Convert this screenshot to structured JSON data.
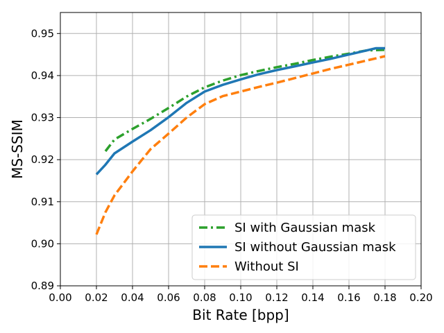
{
  "chart_data": {
    "type": "line",
    "xlabel": "Bit Rate [bpp]",
    "ylabel": "MS-SSIM",
    "xlim": [
      0.0,
      0.2
    ],
    "ylim": [
      0.89,
      0.955
    ],
    "x_ticks": [
      "0.00",
      "0.02",
      "0.04",
      "0.06",
      "0.08",
      "0.10",
      "0.12",
      "0.14",
      "0.16",
      "0.18",
      "0.20"
    ],
    "x_tick_values": [
      0.0,
      0.02,
      0.04,
      0.06,
      0.08,
      0.1,
      0.12,
      0.14,
      0.16,
      0.18,
      0.2
    ],
    "y_ticks": [
      "0.89",
      "0.90",
      "0.91",
      "0.92",
      "0.93",
      "0.94",
      "0.95"
    ],
    "y_tick_values": [
      0.89,
      0.9,
      0.91,
      0.92,
      0.93,
      0.94,
      0.95
    ],
    "grid": true,
    "legend_position": "bottom-right",
    "series": [
      {
        "name": "SI with Gaussian mask",
        "color": "#2ca02c",
        "style": "dashdot",
        "x": [
          0.025,
          0.03,
          0.04,
          0.05,
          0.06,
          0.07,
          0.08,
          0.09,
          0.1,
          0.11,
          0.12,
          0.13,
          0.14,
          0.15,
          0.16,
          0.17,
          0.18
        ],
        "y": [
          0.922,
          0.9248,
          0.9273,
          0.9297,
          0.9323,
          0.935,
          0.9372,
          0.9388,
          0.9401,
          0.9411,
          0.942,
          0.9428,
          0.9437,
          0.9445,
          0.9452,
          0.946,
          0.9461
        ]
      },
      {
        "name": "SI without Gaussian mask",
        "color": "#1f77b4",
        "style": "solid",
        "x": [
          0.02,
          0.025,
          0.03,
          0.04,
          0.05,
          0.06,
          0.07,
          0.08,
          0.09,
          0.1,
          0.11,
          0.12,
          0.13,
          0.14,
          0.15,
          0.16,
          0.17,
          0.175,
          0.18
        ],
        "y": [
          0.9165,
          0.9188,
          0.9215,
          0.9243,
          0.927,
          0.9301,
          0.9335,
          0.9362,
          0.9378,
          0.9391,
          0.9403,
          0.9413,
          0.9422,
          0.9431,
          0.944,
          0.945,
          0.946,
          0.9465,
          0.9465
        ]
      },
      {
        "name": "Without SI",
        "color": "#ff7f0e",
        "style": "dashed",
        "x": [
          0.02,
          0.025,
          0.03,
          0.04,
          0.05,
          0.06,
          0.07,
          0.08,
          0.09,
          0.1,
          0.11,
          0.12,
          0.13,
          0.14,
          0.15,
          0.16,
          0.17,
          0.18
        ],
        "y": [
          0.9022,
          0.9075,
          0.9115,
          0.9172,
          0.9225,
          0.9262,
          0.93,
          0.9332,
          0.9351,
          0.9362,
          0.9373,
          0.9383,
          0.9394,
          0.9405,
          0.9416,
          0.9426,
          0.9436,
          0.9446
        ]
      }
    ]
  }
}
